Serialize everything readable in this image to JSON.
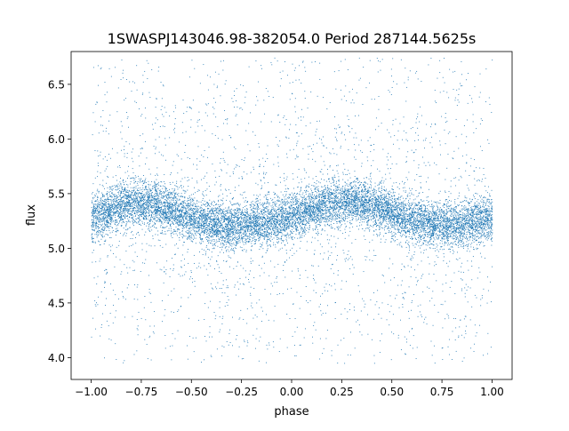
{
  "chart_data": {
    "type": "scatter",
    "title": "1SWASPJ143046.98-382054.0 Period 287144.5625s",
    "xlabel": "phase",
    "ylabel": "flux",
    "xlim": [
      -1.1,
      1.1
    ],
    "ylim": [
      3.8,
      6.8
    ],
    "x_ticks": [
      -1.0,
      -0.75,
      -0.5,
      -0.25,
      0.0,
      0.25,
      0.5,
      0.75,
      1.0
    ],
    "x_tick_labels": [
      "−1.00",
      "−0.75",
      "−0.50",
      "−0.25",
      "0.00",
      "0.25",
      "0.50",
      "0.75",
      "1.00"
    ],
    "y_ticks": [
      4.0,
      4.5,
      5.0,
      5.5,
      6.0,
      6.5
    ],
    "y_tick_labels": [
      "4.0",
      "4.5",
      "5.0",
      "5.5",
      "6.0",
      "6.5"
    ],
    "grid": false,
    "marker_color": "#1f77b4",
    "phase_range": [
      -1.0,
      1.0
    ],
    "flux_range": [
      3.95,
      6.75
    ],
    "envelope_phase": [
      -1.0,
      -0.9,
      -0.8,
      -0.7,
      -0.6,
      -0.5,
      -0.4,
      -0.3,
      -0.2,
      -0.1,
      0.0,
      0.1,
      0.2,
      0.3,
      0.4,
      0.5,
      0.6,
      0.7,
      0.8,
      0.9,
      1.0
    ],
    "envelope_median_flux": [
      5.27,
      5.36,
      5.42,
      5.4,
      5.36,
      5.28,
      5.22,
      5.22,
      5.22,
      5.25,
      5.3,
      5.36,
      5.41,
      5.43,
      5.4,
      5.32,
      5.26,
      5.22,
      5.22,
      5.24,
      5.27
    ],
    "envelope_core_halfwidth": 0.17
  }
}
